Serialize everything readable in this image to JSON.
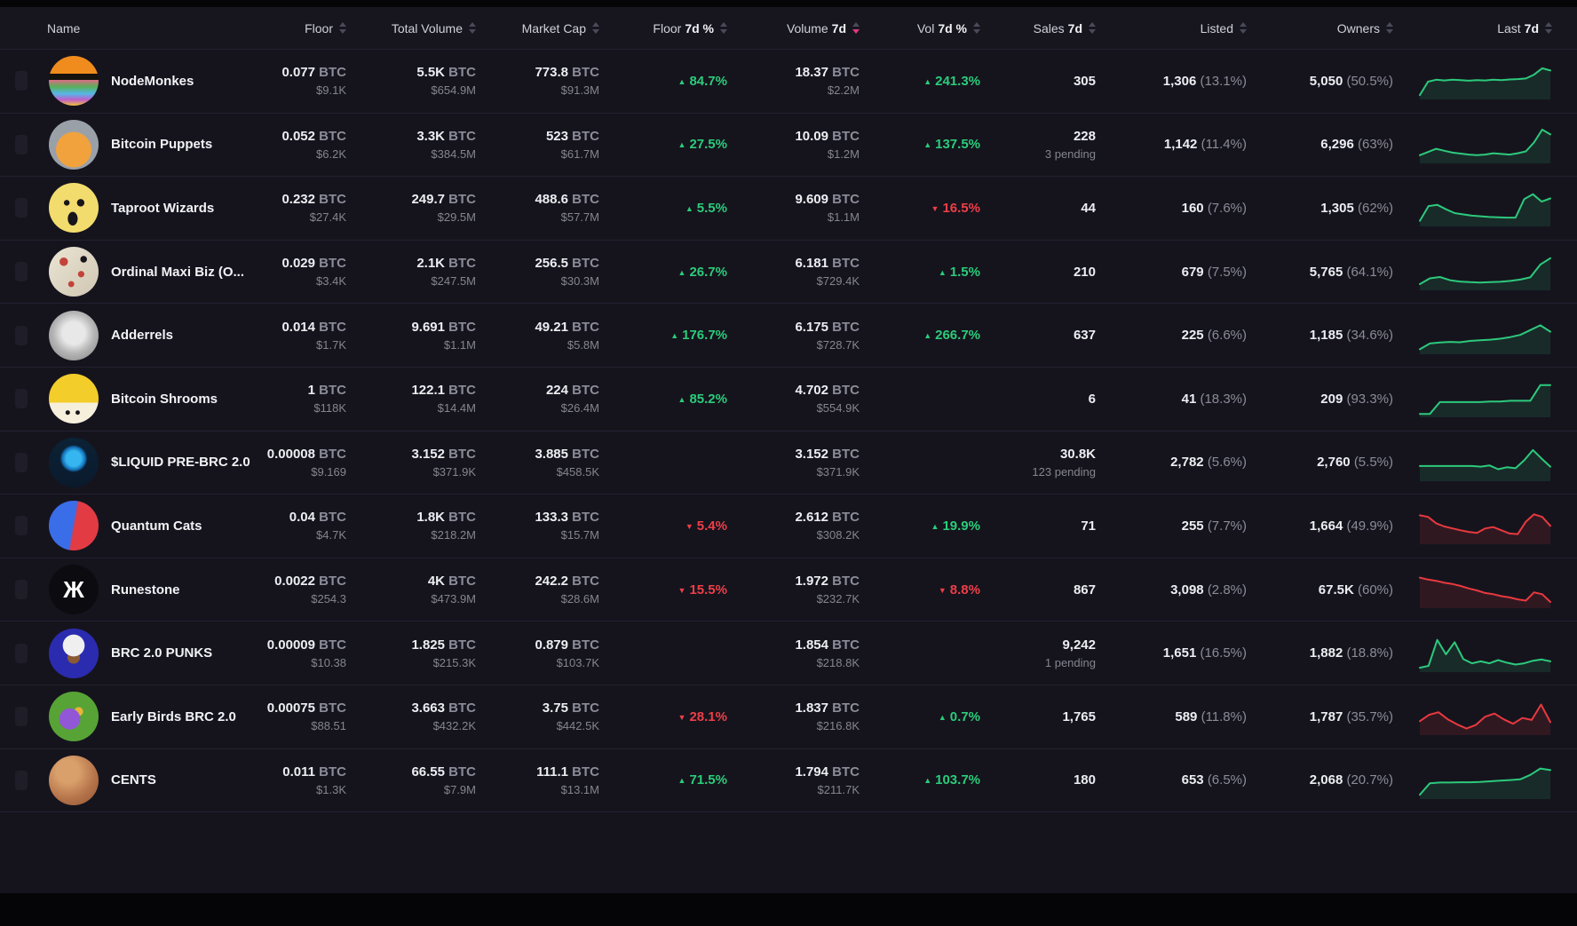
{
  "units": {
    "btc": "BTC"
  },
  "colors": {
    "green": "#2dc97c",
    "red": "#e8393f",
    "accent_sort": "#e2397d"
  },
  "header": {
    "columns": [
      {
        "pre": "Name",
        "bold": ""
      },
      {
        "pre": "Floor",
        "bold": ""
      },
      {
        "pre": "Total Volume",
        "bold": ""
      },
      {
        "pre": "Market Cap",
        "bold": ""
      },
      {
        "pre": "Floor",
        "bold": "7d %"
      },
      {
        "pre": "Volume",
        "bold": "7d"
      },
      {
        "pre": "Vol",
        "bold": "7d %"
      },
      {
        "pre": "Sales",
        "bold": "7d"
      },
      {
        "pre": "Listed",
        "bold": ""
      },
      {
        "pre": "Owners",
        "bold": ""
      },
      {
        "pre": "Last",
        "bold": "7d"
      }
    ],
    "sorted_column": "Volume 7d",
    "sorted_direction": "desc"
  },
  "rows": [
    {
      "name": "NodeMonkes",
      "floor_btc": "0.077",
      "floor_usd": "$9.1K",
      "total_volume_btc": "5.5K",
      "total_volume_usd": "$654.9M",
      "market_cap_btc": "773.8",
      "market_cap_usd": "$91.3M",
      "floor7d": {
        "dir": "up",
        "value": "84.7%"
      },
      "vol7d_btc": "18.37",
      "vol7d_usd": "$2.2M",
      "vol7dpct": {
        "dir": "up",
        "value": "241.3%"
      },
      "sales": "305",
      "sales_sub": "",
      "listed": "1,306",
      "listed_pct": "(13.1%)",
      "owners": "5,050",
      "owners_pct": "(50.5%)",
      "spark": {
        "color": "green",
        "points": [
          8,
          50,
          56,
          54,
          56,
          55,
          53,
          55,
          54,
          56,
          55,
          57,
          58,
          60,
          72,
          92,
          85
        ]
      },
      "avatar": {
        "bg": "linear-gradient(180deg,#f08b1d 0%,#f08b1d 36%,#15120d 36%,#15120d 48%,#e06a86 48%,#58b05a 62%,#56b7e8 76%,#c05fc9 88%,#f0c23e 100%)",
        "glyph": ""
      }
    },
    {
      "name": "Bitcoin Puppets",
      "floor_btc": "0.052",
      "floor_usd": "$6.2K",
      "total_volume_btc": "3.3K",
      "total_volume_usd": "$384.5M",
      "market_cap_btc": "523",
      "market_cap_usd": "$61.7M",
      "floor7d": {
        "dir": "up",
        "value": "27.5%"
      },
      "vol7d_btc": "10.09",
      "vol7d_usd": "$1.2M",
      "vol7dpct": {
        "dir": "up",
        "value": "137.5%"
      },
      "sales": "228",
      "sales_sub": "3 pending",
      "listed": "1,142",
      "listed_pct": "(11.4%)",
      "owners": "6,296",
      "owners_pct": "(63%)",
      "spark": {
        "color": "green",
        "points": [
          20,
          30,
          40,
          34,
          28,
          25,
          22,
          20,
          22,
          26,
          24,
          22,
          26,
          32,
          60,
          100,
          85
        ]
      },
      "avatar": {
        "bg": "radial-gradient(circle at 50% 60%,#f2a23c 0 45%,#9aa0a8 46%)",
        "glyph": ""
      }
    },
    {
      "name": "Taproot Wizards",
      "floor_btc": "0.232",
      "floor_usd": "$27.4K",
      "total_volume_btc": "249.7",
      "total_volume_usd": "$29.5M",
      "market_cap_btc": "488.6",
      "market_cap_usd": "$57.7M",
      "floor7d": {
        "dir": "up",
        "value": "5.5%"
      },
      "vol7d_btc": "9.609",
      "vol7d_usd": "$1.1M",
      "vol7dpct": {
        "dir": "down",
        "value": "16.5%"
      },
      "sales": "44",
      "sales_sub": "",
      "listed": "160",
      "listed_pct": "(7.6%)",
      "owners": "1,305",
      "owners_pct": "(62%)",
      "spark": {
        "color": "green",
        "points": [
          12,
          58,
          62,
          48,
          36,
          32,
          28,
          26,
          24,
          23,
          22,
          22,
          80,
          95,
          72,
          82
        ]
      },
      "avatar": {
        "bg": "radial-gradient(circle at 36% 40%,#17151a 0 6%,transparent 7%),radial-gradient(circle at 64% 40%,#17151a 0 8%,transparent 9%),radial-gradient(ellipse at 48% 72%,#17151a 0 13%,transparent 14%),radial-gradient(circle at 50% 50%,#f2dc6e 0 70%,#e3c554 100%)",
        "glyph": ""
      }
    },
    {
      "name": "Ordinal Maxi Biz (O...",
      "floor_btc": "0.029",
      "floor_usd": "$3.4K",
      "total_volume_btc": "2.1K",
      "total_volume_usd": "$247.5M",
      "market_cap_btc": "256.5",
      "market_cap_usd": "$30.3M",
      "floor7d": {
        "dir": "up",
        "value": "26.7%"
      },
      "vol7d_btc": "6.181",
      "vol7d_usd": "$729.4K",
      "vol7dpct": {
        "dir": "up",
        "value": "1.5%"
      },
      "sales": "210",
      "sales_sub": "",
      "listed": "679",
      "listed_pct": "(7.5%)",
      "owners": "5,765",
      "owners_pct": "(64.1%)",
      "spark": {
        "color": "green",
        "points": [
          14,
          32,
          36,
          26,
          22,
          20,
          19,
          20,
          21,
          24,
          28,
          35,
          75,
          95
        ]
      },
      "avatar": {
        "bg": "radial-gradient(circle at 30% 30%,#c2433a 0 8%,transparent 9%),radial-gradient(circle at 65% 55%,#c2433a 0 7%,transparent 8%),radial-gradient(circle at 45% 75%,#c2433a 0 6%,transparent 7%),radial-gradient(circle at 70% 25%,#17141a 0 6%,transparent 7%),linear-gradient(135deg,#ece5d4,#cfc6b2)",
        "glyph": ""
      }
    },
    {
      "name": "Adderrels",
      "floor_btc": "0.014",
      "floor_usd": "$1.7K",
      "total_volume_btc": "9.691",
      "total_volume_usd": "$1.1M",
      "market_cap_btc": "49.21",
      "market_cap_usd": "$5.8M",
      "floor7d": {
        "dir": "up",
        "value": "176.7%"
      },
      "vol7d_btc": "6.175",
      "vol7d_usd": "$728.7K",
      "vol7dpct": {
        "dir": "up",
        "value": "266.7%"
      },
      "sales": "637",
      "sales_sub": "",
      "listed": "225",
      "listed_pct": "(6.6%)",
      "owners": "1,185",
      "owners_pct": "(34.6%)",
      "spark": {
        "color": "green",
        "points": [
          10,
          28,
          31,
          33,
          32,
          36,
          38,
          40,
          43,
          48,
          55,
          70,
          85,
          65
        ]
      },
      "avatar": {
        "bg": "radial-gradient(circle at 50% 45%,#e8e8e8 0 30%,#b5b5b5 55%,#7c7c80 100%)",
        "glyph": ""
      }
    },
    {
      "name": "Bitcoin Shrooms",
      "floor_btc": "1",
      "floor_usd": "$118K",
      "total_volume_btc": "122.1",
      "total_volume_usd": "$14.4M",
      "market_cap_btc": "224",
      "market_cap_usd": "$26.4M",
      "floor7d": {
        "dir": "up",
        "value": "85.2%"
      },
      "vol7d_btc": "4.702",
      "vol7d_usd": "$554.9K",
      "vol7dpct": null,
      "sales": "6",
      "sales_sub": "",
      "listed": "41",
      "listed_pct": "(18.3%)",
      "owners": "209",
      "owners_pct": "(93.3%)",
      "spark": {
        "color": "green",
        "points": [
          5,
          5,
          42,
          42,
          42,
          42,
          42,
          44,
          44,
          46,
          46,
          46,
          95,
          95
        ]
      },
      "avatar": {
        "bg": "radial-gradient(circle at 38% 78%,#17151a 0 4%,transparent 5%),radial-gradient(circle at 58% 78%,#17151a 0 4%,transparent 5%),linear-gradient(180deg,#f3cd2a 0 58%,#f6efdc 58%)",
        "glyph": ""
      }
    },
    {
      "name": "$LIQUID PRE-BRC 2.0",
      "floor_btc": "0.00008",
      "floor_usd": "$9.169",
      "total_volume_btc": "3.152",
      "total_volume_usd": "$371.9K",
      "market_cap_btc": "3.885",
      "market_cap_usd": "$458.5K",
      "floor7d": null,
      "vol7d_btc": "3.152",
      "vol7d_usd": "$371.9K",
      "vol7dpct": null,
      "sales": "30.8K",
      "sales_sub": "123 pending",
      "listed": "2,782",
      "listed_pct": "(5.6%)",
      "owners": "2,760",
      "owners_pct": "(5.5%)",
      "spark": {
        "color": "green",
        "points": [
          42,
          42,
          42,
          42,
          42,
          42,
          42,
          40,
          44,
          32,
          38,
          35,
          60,
          92,
          65,
          40
        ]
      },
      "avatar": {
        "bg": "radial-gradient(circle at 50% 42%,#35b6f0 0 20%,#1470b8 30%,transparent 36%),linear-gradient(180deg,#0c2236,#0a1a2c)",
        "glyph": ""
      }
    },
    {
      "name": "Quantum Cats",
      "floor_btc": "0.04",
      "floor_usd": "$4.7K",
      "total_volume_btc": "1.8K",
      "total_volume_usd": "$218.2M",
      "market_cap_btc": "133.3",
      "market_cap_usd": "$15.7M",
      "floor7d": {
        "dir": "down",
        "value": "5.4%"
      },
      "vol7d_btc": "2.612",
      "vol7d_usd": "$308.2K",
      "vol7dpct": {
        "dir": "up",
        "value": "19.9%"
      },
      "sales": "71",
      "sales_sub": "",
      "listed": "255",
      "listed_pct": "(7.7%)",
      "owners": "1,664",
      "owners_pct": "(49.9%)",
      "spark": {
        "color": "red",
        "points": [
          85,
          80,
          60,
          50,
          44,
          38,
          33,
          30,
          44,
          48,
          38,
          28,
          26,
          65,
          88,
          80,
          52
        ]
      },
      "avatar": {
        "bg": "linear-gradient(100deg,#3a6de8 0 48%,#e23b44 52%)",
        "glyph": ""
      }
    },
    {
      "name": "Runestone",
      "floor_btc": "0.0022",
      "floor_usd": "$254.3",
      "total_volume_btc": "4K",
      "total_volume_usd": "$473.9M",
      "market_cap_btc": "242.2",
      "market_cap_usd": "$28.6M",
      "floor7d": {
        "dir": "down",
        "value": "15.5%"
      },
      "vol7d_btc": "1.972",
      "vol7d_usd": "$232.7K",
      "vol7dpct": {
        "dir": "down",
        "value": "8.8%"
      },
      "sales": "867",
      "sales_sub": "",
      "listed": "3,098",
      "listed_pct": "(2.8%)",
      "owners": "67.5K",
      "owners_pct": "(60%)",
      "spark": {
        "color": "red",
        "points": [
          90,
          84,
          80,
          74,
          70,
          64,
          56,
          50,
          42,
          38,
          32,
          28,
          22,
          18,
          44,
          38,
          14
        ]
      },
      "avatar": {
        "bg": "#0c0c10",
        "glyph": "Ж"
      }
    },
    {
      "name": "BRC 2.0 PUNKS",
      "floor_btc": "0.00009",
      "floor_usd": "$10.38",
      "total_volume_btc": "1.825",
      "total_volume_usd": "$215.3K",
      "market_cap_btc": "0.879",
      "market_cap_usd": "$103.7K",
      "floor7d": null,
      "vol7d_btc": "1.854",
      "vol7d_usd": "$218.8K",
      "vol7dpct": null,
      "sales": "9,242",
      "sales_sub": "1 pending",
      "listed": "1,651",
      "listed_pct": "(16.5%)",
      "owners": "1,882",
      "owners_pct": "(18.8%)",
      "spark": {
        "color": "green",
        "points": [
          8,
          14,
          95,
          50,
          88,
          35,
          22,
          28,
          22,
          32,
          24,
          18,
          22,
          30,
          34,
          28
        ]
      },
      "avatar": {
        "bg": "radial-gradient(circle at 50% 34%,#efefef 0 26%,transparent 27%),radial-gradient(circle at 50% 58%,#8a5a35 0 16%,transparent 17%),radial-gradient(circle at 50% 50%,#2b2bb0 0 70%,#1e1e8c 100%)",
        "glyph": ""
      }
    },
    {
      "name": "Early Birds BRC 2.0",
      "floor_btc": "0.00075",
      "floor_usd": "$88.51",
      "total_volume_btc": "3.663",
      "total_volume_usd": "$432.2K",
      "market_cap_btc": "3.75",
      "market_cap_usd": "$442.5K",
      "floor7d": {
        "dir": "down",
        "value": "28.1%"
      },
      "vol7d_btc": "1.837",
      "vol7d_usd": "$216.8K",
      "vol7dpct": {
        "dir": "up",
        "value": "0.7%"
      },
      "sales": "1,765",
      "sales_sub": "",
      "listed": "589",
      "listed_pct": "(11.8%)",
      "owners": "1,787",
      "owners_pct": "(35.7%)",
      "spark": {
        "color": "red",
        "points": [
          38,
          58,
          66,
          44,
          28,
          15,
          26,
          52,
          62,
          44,
          30,
          48,
          42,
          90,
          35
        ]
      },
      "avatar": {
        "bg": "radial-gradient(circle at 42% 55%,#9257d6 0 26%,transparent 27%),radial-gradient(circle at 60% 40%,#e8b43a 0 10%,transparent 11%),radial-gradient(circle at 50% 50%,#57a336 0 70%,#3c7d24 100%)",
        "glyph": ""
      }
    },
    {
      "name": "CENTS",
      "floor_btc": "0.011",
      "floor_usd": "$1.3K",
      "total_volume_btc": "66.55",
      "total_volume_usd": "$7.9M",
      "market_cap_btc": "111.1",
      "market_cap_usd": "$13.1M",
      "floor7d": {
        "dir": "up",
        "value": "71.5%"
      },
      "vol7d_btc": "1.794",
      "vol7d_usd": "$211.7K",
      "vol7dpct": {
        "dir": "up",
        "value": "103.7%"
      },
      "sales": "180",
      "sales_sub": "",
      "listed": "653",
      "listed_pct": "(6.5%)",
      "owners": "2,068",
      "owners_pct": "(20.7%)",
      "spark": {
        "color": "green",
        "points": [
          8,
          44,
          46,
          46,
          47,
          47,
          48,
          50,
          52,
          54,
          56,
          70,
          90,
          85
        ]
      },
      "avatar": {
        "bg": "radial-gradient(circle at 38% 32%,#d9a06b 0 25%,#b5734a 60%,#8f5432 100%)",
        "glyph": ""
      }
    }
  ]
}
